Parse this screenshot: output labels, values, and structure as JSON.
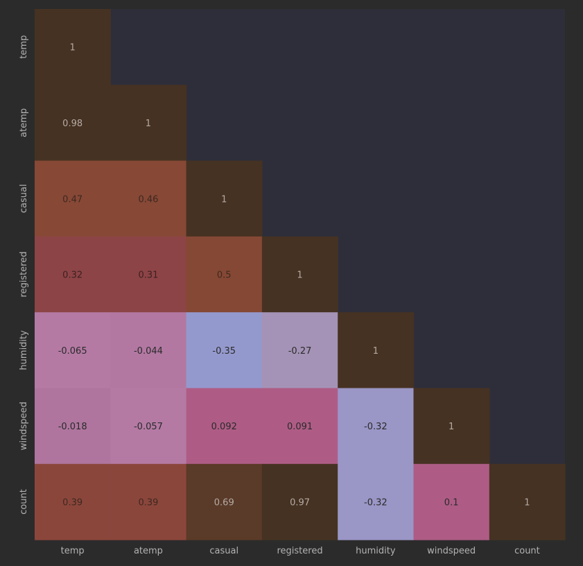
{
  "chart_data": {
    "type": "heatmap",
    "variables": [
      "temp",
      "atemp",
      "casual",
      "registered",
      "humidity",
      "windspeed",
      "count"
    ],
    "x_tick_labels": [
      "temp",
      "atemp",
      "casual",
      "registered",
      "humidity",
      "windspeed",
      "count"
    ],
    "y_tick_labels": [
      "temp",
      "atemp",
      "casual",
      "registered",
      "humidity",
      "windspeed",
      "count"
    ],
    "mask": "upper triangle (above diagonal) hidden",
    "cells": [
      {
        "row": 0,
        "col": 0,
        "value": 1,
        "label": "1",
        "color": "#463222",
        "text_color": "#b4aba6"
      },
      {
        "row": 1,
        "col": 0,
        "value": 0.98,
        "label": "0.98",
        "color": "#463222",
        "text_color": "#b4aba6"
      },
      {
        "row": 1,
        "col": 1,
        "value": 1,
        "label": "1",
        "color": "#463222",
        "text_color": "#b4aba6"
      },
      {
        "row": 2,
        "col": 0,
        "value": 0.47,
        "label": "0.47",
        "color": "#874836",
        "text_color": "#3e2820"
      },
      {
        "row": 2,
        "col": 1,
        "value": 0.46,
        "label": "0.46",
        "color": "#874836",
        "text_color": "#3e2820"
      },
      {
        "row": 2,
        "col": 2,
        "value": 1,
        "label": "1",
        "color": "#463222",
        "text_color": "#b4aba6"
      },
      {
        "row": 3,
        "col": 0,
        "value": 0.32,
        "label": "0.32",
        "color": "#8d4446",
        "text_color": "#3e2022"
      },
      {
        "row": 3,
        "col": 1,
        "value": 0.31,
        "label": "0.31",
        "color": "#8d4446",
        "text_color": "#3e2022"
      },
      {
        "row": 3,
        "col": 2,
        "value": 0.5,
        "label": "0.5",
        "color": "#854834",
        "text_color": "#3e2820"
      },
      {
        "row": 3,
        "col": 3,
        "value": 1,
        "label": "1",
        "color": "#463222",
        "text_color": "#b4aba6"
      },
      {
        "row": 4,
        "col": 0,
        "value": -0.065,
        "label": "-0.065",
        "color": "#b47aa4",
        "text_color": "#2a2a2a"
      },
      {
        "row": 4,
        "col": 1,
        "value": -0.044,
        "label": "-0.044",
        "color": "#b278a2",
        "text_color": "#2a2a2a"
      },
      {
        "row": 4,
        "col": 2,
        "value": -0.35,
        "label": "-0.35",
        "color": "#9499cd",
        "text_color": "#2a2a2a"
      },
      {
        "row": 4,
        "col": 3,
        "value": -0.27,
        "label": "-0.27",
        "color": "#a493b6",
        "text_color": "#2a2a2a"
      },
      {
        "row": 4,
        "col": 4,
        "value": 1,
        "label": "1",
        "color": "#463222",
        "text_color": "#b4aba6"
      },
      {
        "row": 5,
        "col": 0,
        "value": -0.018,
        "label": "-0.018",
        "color": "#af759e",
        "text_color": "#2a2a2a"
      },
      {
        "row": 5,
        "col": 1,
        "value": -0.057,
        "label": "-0.057",
        "color": "#b47aa4",
        "text_color": "#2a2a2a"
      },
      {
        "row": 5,
        "col": 2,
        "value": 0.092,
        "label": "0.092",
        "color": "#ae5c85",
        "text_color": "#2a2a2a"
      },
      {
        "row": 5,
        "col": 3,
        "value": 0.091,
        "label": "0.091",
        "color": "#ae5c85",
        "text_color": "#2a2a2a"
      },
      {
        "row": 5,
        "col": 4,
        "value": -0.32,
        "label": "-0.32",
        "color": "#9a96c6",
        "text_color": "#2a2a2a"
      },
      {
        "row": 5,
        "col": 5,
        "value": 1,
        "label": "1",
        "color": "#463222",
        "text_color": "#b4aba6"
      },
      {
        "row": 6,
        "col": 0,
        "value": 0.39,
        "label": "0.39",
        "color": "#8b463c",
        "text_color": "#3e2820"
      },
      {
        "row": 6,
        "col": 1,
        "value": 0.39,
        "label": "0.39",
        "color": "#8b463c",
        "text_color": "#3e2820"
      },
      {
        "row": 6,
        "col": 2,
        "value": 0.69,
        "label": "0.69",
        "color": "#5a3a28",
        "text_color": "#b4aba6"
      },
      {
        "row": 6,
        "col": 3,
        "value": 0.97,
        "label": "0.97",
        "color": "#463222",
        "text_color": "#b4aba6"
      },
      {
        "row": 6,
        "col": 4,
        "value": -0.32,
        "label": "-0.32",
        "color": "#9a96c6",
        "text_color": "#2a2a2a"
      },
      {
        "row": 6,
        "col": 5,
        "value": 0.1,
        "label": "0.1",
        "color": "#ae5c85",
        "text_color": "#2a2a2a"
      },
      {
        "row": 6,
        "col": 6,
        "value": 1,
        "label": "1",
        "color": "#463222",
        "text_color": "#b4aba6"
      }
    ],
    "grid": false,
    "legend": "none",
    "colors": {
      "page_background": "#2b2b2b",
      "plot_background": "#2e2e3a",
      "tick_text": "#b3b3b3"
    }
  }
}
